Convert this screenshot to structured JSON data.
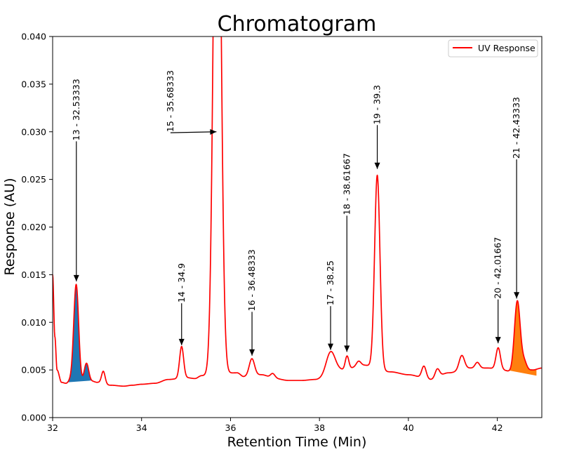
{
  "chart_data": {
    "type": "line",
    "title": "Chromatogram",
    "xlabel": "Retention Time (Min)",
    "ylabel": "Response (AU)",
    "xlim": [
      32,
      43
    ],
    "ylim": [
      0.0,
      0.04
    ],
    "x_ticks": [
      32,
      34,
      36,
      38,
      40,
      42
    ],
    "x_tick_labels": [
      "32",
      "34",
      "36",
      "38",
      "40",
      "42"
    ],
    "y_ticks": [
      0.0,
      0.005,
      0.01,
      0.015,
      0.02,
      0.025,
      0.03,
      0.035,
      0.04
    ],
    "y_tick_labels": [
      "0.000",
      "0.005",
      "0.010",
      "0.015",
      "0.020",
      "0.025",
      "0.030",
      "0.035",
      "0.040"
    ],
    "grid": false,
    "legend": {
      "position": "top-right",
      "entries": [
        {
          "label": "UV Response",
          "color": "#ff0000"
        }
      ]
    },
    "series": [
      {
        "name": "UV Response",
        "color": "#ff0000",
        "baseline": [
          [
            32.0,
            0.015
          ],
          [
            32.05,
            0.0085
          ],
          [
            32.1,
            0.005
          ],
          [
            32.2,
            0.0037
          ],
          [
            32.3,
            0.0036
          ],
          [
            32.4,
            0.0039
          ],
          [
            32.6,
            0.0036
          ],
          [
            32.9,
            0.0038
          ],
          [
            33.0,
            0.0037
          ],
          [
            33.3,
            0.0034
          ],
          [
            33.6,
            0.0033
          ],
          [
            33.8,
            0.0034
          ],
          [
            34.0,
            0.0035
          ],
          [
            34.3,
            0.0036
          ],
          [
            34.6,
            0.004
          ],
          [
            35.0,
            0.0042
          ],
          [
            35.2,
            0.0041
          ],
          [
            35.35,
            0.0044
          ],
          [
            36.15,
            0.0047
          ],
          [
            36.3,
            0.0043
          ],
          [
            36.7,
            0.0045
          ],
          [
            37.0,
            0.0041
          ],
          [
            37.3,
            0.0039
          ],
          [
            37.6,
            0.0039
          ],
          [
            37.9,
            0.004
          ],
          [
            38.5,
            0.005
          ],
          [
            39.0,
            0.0055
          ],
          [
            39.6,
            0.0048
          ],
          [
            40.0,
            0.0045
          ],
          [
            40.5,
            0.004
          ],
          [
            40.9,
            0.0047
          ],
          [
            41.4,
            0.0052
          ],
          [
            41.8,
            0.0052
          ],
          [
            42.1,
            0.005
          ],
          [
            42.5,
            0.0045
          ],
          [
            42.8,
            0.005
          ],
          [
            43.0,
            0.0052
          ]
        ],
        "peaks": [
          {
            "center": 32.53,
            "height": 0.0103,
            "width": 0.055
          },
          {
            "center": 32.76,
            "height": 0.002,
            "width": 0.05
          },
          {
            "center": 33.14,
            "height": 0.0013,
            "width": 0.04
          },
          {
            "center": 34.9,
            "height": 0.0033,
            "width": 0.045
          },
          {
            "center": 35.7,
            "height": 0.07,
            "width": 0.08
          },
          {
            "center": 36.48,
            "height": 0.0018,
            "width": 0.06
          },
          {
            "center": 36.95,
            "height": 0.0005,
            "width": 0.05
          },
          {
            "center": 38.25,
            "height": 0.0023,
            "width": 0.1
          },
          {
            "center": 38.62,
            "height": 0.0014,
            "width": 0.04
          },
          {
            "center": 38.88,
            "height": 0.0005,
            "width": 0.05
          },
          {
            "center": 39.3,
            "height": 0.0203,
            "width": 0.06
          },
          {
            "center": 40.35,
            "height": 0.0013,
            "width": 0.05
          },
          {
            "center": 40.65,
            "height": 0.0009,
            "width": 0.05
          },
          {
            "center": 41.2,
            "height": 0.0015,
            "width": 0.06
          },
          {
            "center": 41.55,
            "height": 0.0006,
            "width": 0.05
          },
          {
            "center": 42.02,
            "height": 0.0023,
            "width": 0.05
          },
          {
            "center": 42.45,
            "height": 0.0077,
            "width": 0.065
          },
          {
            "center": 42.6,
            "height": 0.0012,
            "width": 0.06
          }
        ]
      }
    ],
    "annotations": [
      {
        "label": "13 - 32.53333",
        "x": 32.53333,
        "arrow_tip_y": 0.0143,
        "arrow_tail_y": 0.029,
        "text_x": 32.53333,
        "text_y": 0.029,
        "rotation": 90
      },
      {
        "label": "14 - 34.9",
        "x": 34.9,
        "arrow_tip_y": 0.0076,
        "arrow_tail_y": 0.012,
        "text_x": 34.9,
        "text_y": 0.012,
        "rotation": 90
      },
      {
        "label": "15 - 35.68333",
        "x": 35.68333,
        "arrow_tip_y": 0.03,
        "arrow_tail_y": 0.0299,
        "text_x": 34.65,
        "text_y": 0.0299,
        "rotation": 90
      },
      {
        "label": "16 - 36.48333",
        "x": 36.48333,
        "arrow_tip_y": 0.0065,
        "arrow_tail_y": 0.0111,
        "text_x": 36.48333,
        "text_y": 0.0111,
        "rotation": 90
      },
      {
        "label": "17 - 38.25",
        "x": 38.25,
        "arrow_tip_y": 0.0071,
        "arrow_tail_y": 0.0117,
        "text_x": 38.25,
        "text_y": 0.0117,
        "rotation": 90
      },
      {
        "label": "18 - 38.61667",
        "x": 38.61667,
        "arrow_tip_y": 0.0069,
        "arrow_tail_y": 0.0212,
        "text_x": 38.61667,
        "text_y": 0.0212,
        "rotation": 90
      },
      {
        "label": "19 - 39.3",
        "x": 39.3,
        "arrow_tip_y": 0.0261,
        "arrow_tail_y": 0.0307,
        "text_x": 39.3,
        "text_y": 0.0307,
        "rotation": 90
      },
      {
        "label": "20 - 42.01667",
        "x": 42.01667,
        "arrow_tip_y": 0.0078,
        "arrow_tail_y": 0.0124,
        "text_x": 42.01667,
        "text_y": 0.0124,
        "rotation": 90
      },
      {
        "label": "21 - 42.43333",
        "x": 42.43333,
        "arrow_tip_y": 0.0125,
        "arrow_tail_y": 0.0271,
        "text_x": 42.43333,
        "text_y": 0.0271,
        "rotation": 90
      }
    ],
    "fills": [
      {
        "name": "peak-13-area",
        "color": "#1f77b4",
        "x_start": 32.32,
        "x_end": 32.9,
        "base_left": 0.0037,
        "base_right": 0.0039
      },
      {
        "name": "peak-21-area",
        "color": "#ff7f0e",
        "x_start": 42.2,
        "x_end": 42.88,
        "base_left": 0.005,
        "base_right": 0.0044
      }
    ]
  }
}
